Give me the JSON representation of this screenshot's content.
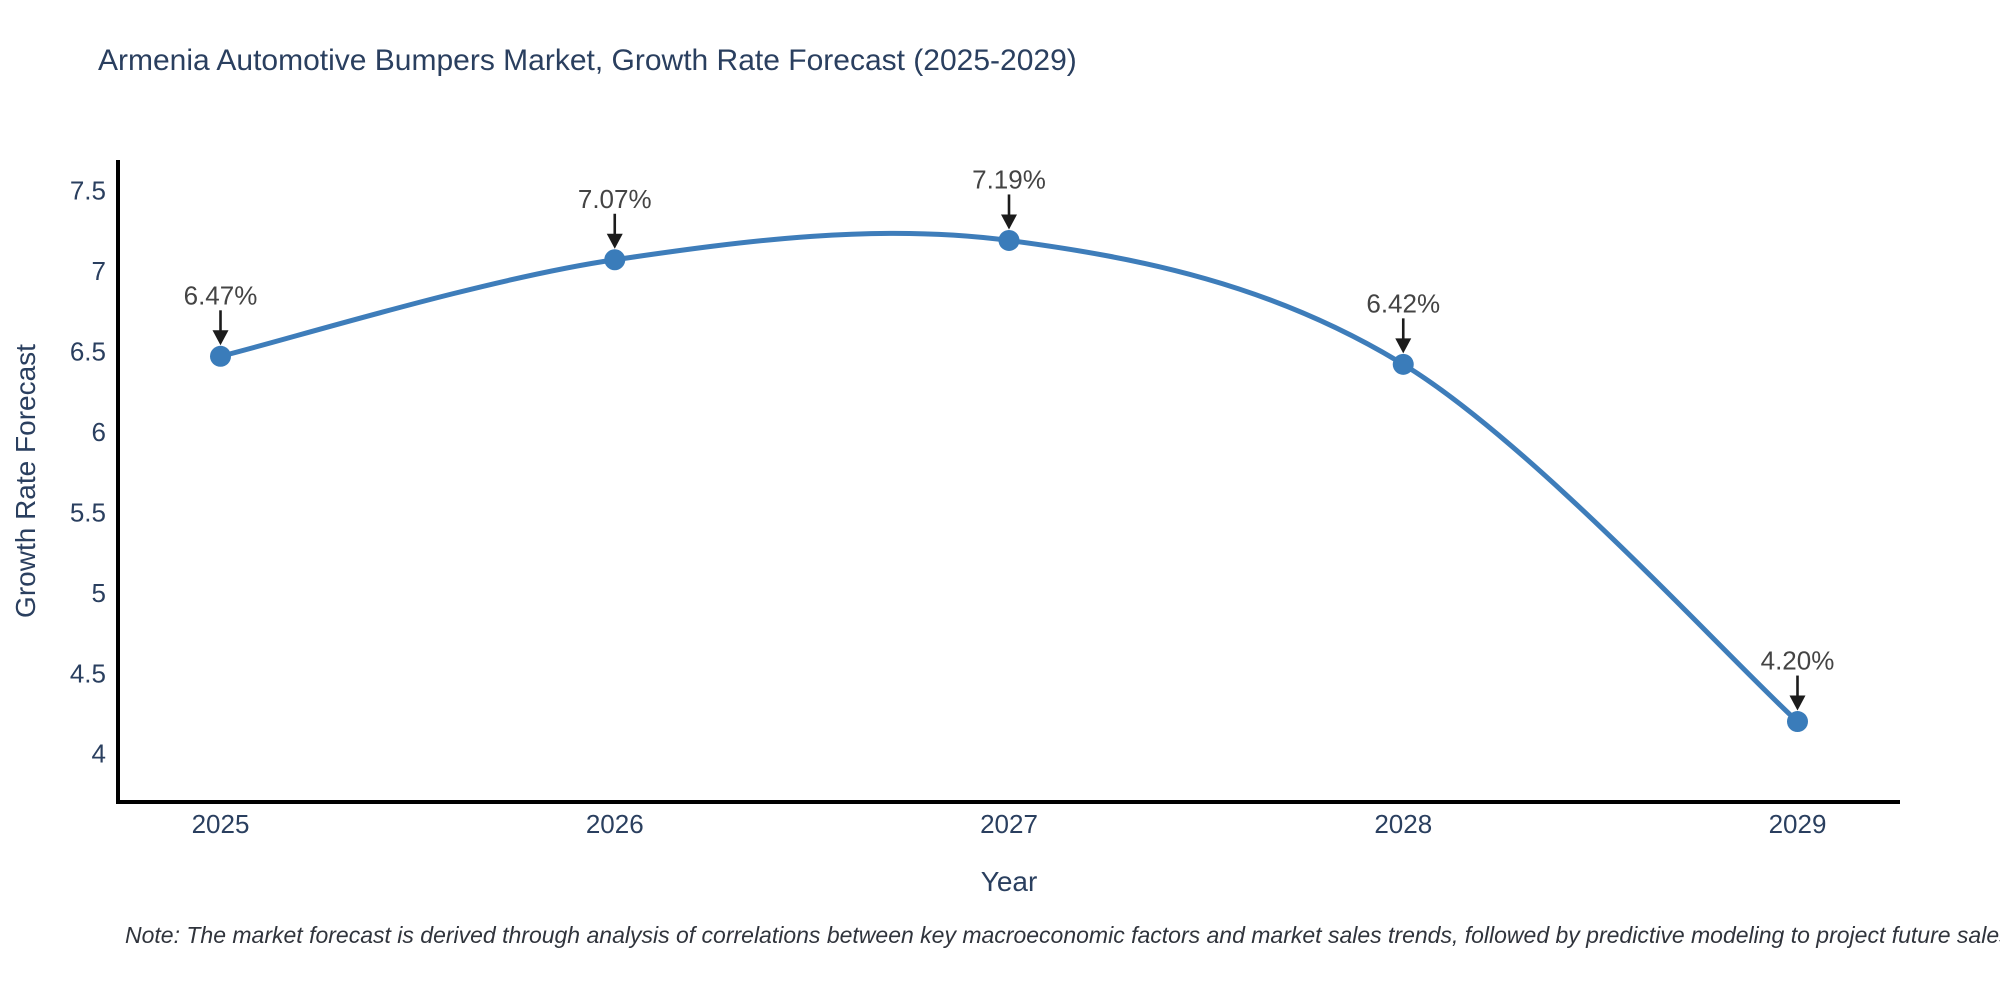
{
  "title": "Armenia Automotive Bumpers Market, Growth Rate Forecast (2025-2029)",
  "note": "Note: The market forecast is derived through analysis of correlations between key macroeconomic factors and market sales trends, followed by predictive modeling to project future sales",
  "chart_data": {
    "type": "line",
    "line_shape": "spline",
    "grid": false,
    "title": "Armenia Automotive Bumpers Market, Growth Rate Forecast (2025-2029)",
    "xlabel": "Year",
    "ylabel": "Growth Rate Forecast",
    "x": [
      2025,
      2026,
      2027,
      2028,
      2029
    ],
    "values": [
      6.47,
      7.07,
      7.19,
      6.42,
      4.2
    ],
    "point_labels": [
      "6.47%",
      "7.07%",
      "7.19%",
      "6.42%",
      "4.20%"
    ],
    "xticks": [
      "2025",
      "2026",
      "2027",
      "2028",
      "2029"
    ],
    "yticks": [
      "7.5",
      "7",
      "6.5",
      "6",
      "5.5",
      "5",
      "4.5",
      "4"
    ],
    "ytick_values": [
      7.5,
      7,
      6.5,
      6,
      5.5,
      5,
      4.5,
      4
    ],
    "xlim": [
      2024.74,
      2029.26
    ],
    "ylim": [
      3.7,
      7.69
    ],
    "colors": {
      "line": "#3e7dba",
      "marker": "#3a7cba",
      "axis": "#000000",
      "tick_text": "#2a3f5f",
      "title_text": "#2a3f5f",
      "annotation_text": "#444444",
      "arrow": "#1c1c1c"
    }
  }
}
